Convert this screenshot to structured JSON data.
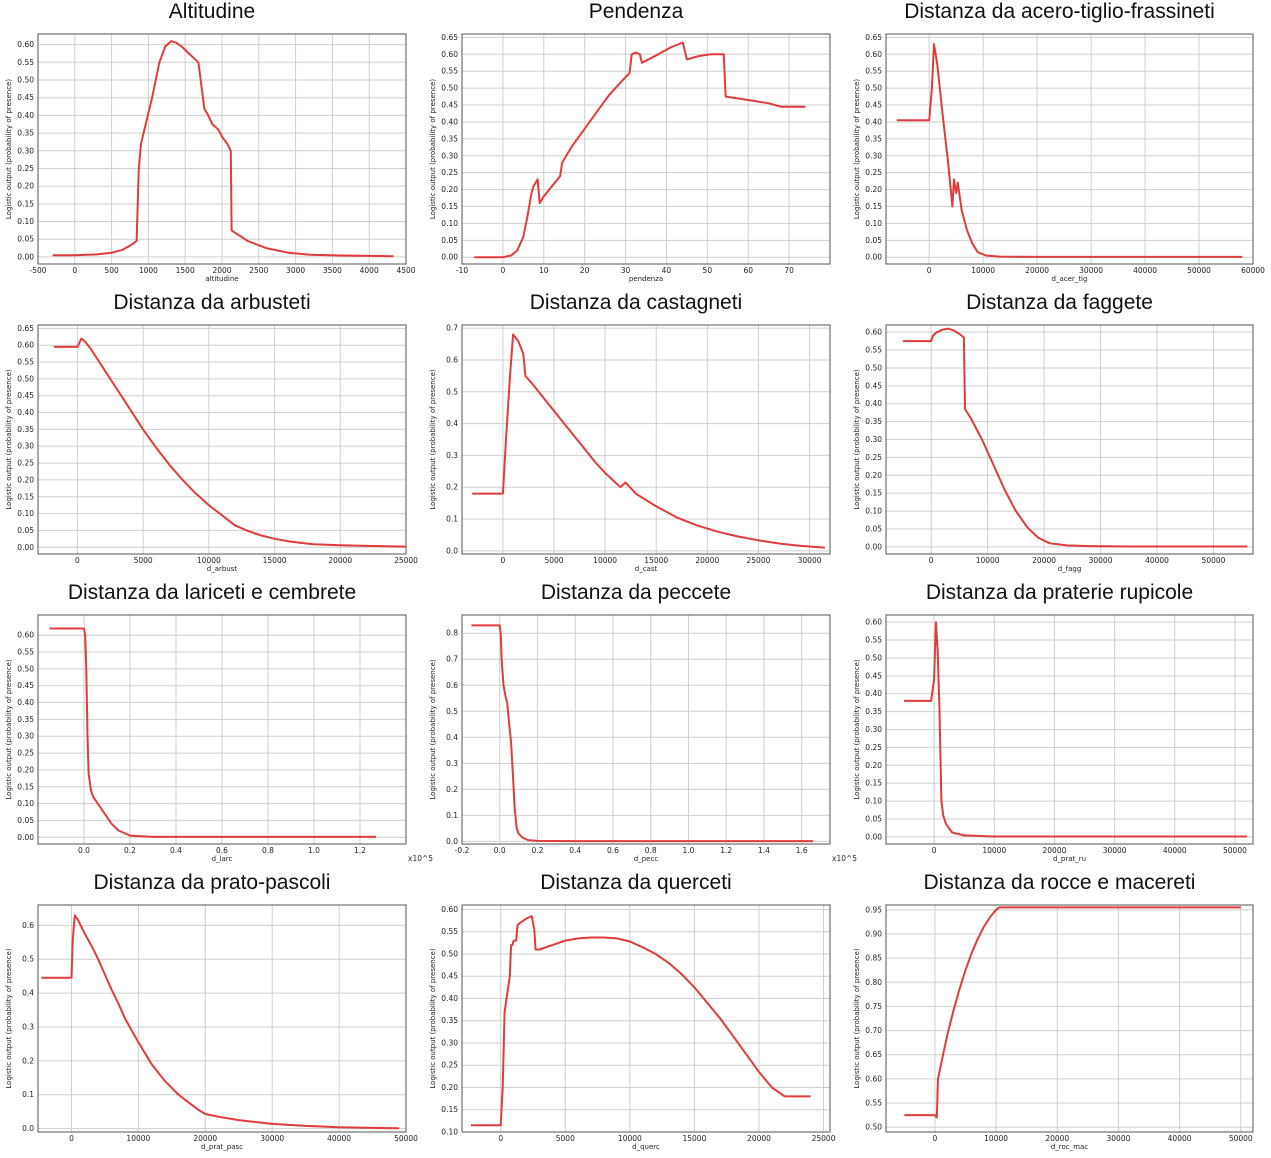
{
  "ylabel": "Logistic output (probability of presence)",
  "line_color": "#e03c3c",
  "chart_data": [
    {
      "type": "line",
      "title": "Altitudine",
      "xlabel": "altitudine",
      "xlim": [
        -500,
        4500
      ],
      "ylim": [
        -0.02,
        0.63
      ],
      "xticks": [
        -500,
        0,
        500,
        1000,
        1500,
        2000,
        2500,
        3000,
        3500,
        4000,
        4500
      ],
      "yticks": [
        0,
        0.05,
        0.1,
        0.15,
        0.2,
        0.25,
        0.3,
        0.35,
        0.4,
        0.45,
        0.5,
        0.55,
        0.6
      ],
      "ydec": 2,
      "x": [
        -300,
        0,
        300,
        500,
        650,
        760,
        840,
        870,
        900,
        1050,
        1150,
        1230,
        1310,
        1380,
        1450,
        1550,
        1680,
        1760,
        1770,
        1800,
        1870,
        1950,
        2000,
        2070,
        2120,
        2130,
        2200,
        2350,
        2600,
        2900,
        3200,
        3600,
        4000,
        4330
      ],
      "y": [
        0.005,
        0.005,
        0.007,
        0.012,
        0.02,
        0.033,
        0.045,
        0.25,
        0.32,
        0.45,
        0.55,
        0.595,
        0.61,
        0.605,
        0.595,
        0.575,
        0.55,
        0.42,
        0.415,
        0.405,
        0.375,
        0.36,
        0.34,
        0.32,
        0.3,
        0.075,
        0.065,
        0.045,
        0.025,
        0.012,
        0.006,
        0.004,
        0.003,
        0.002
      ]
    },
    {
      "type": "line",
      "title": "Pendenza",
      "xlabel": "pendenza",
      "xlim": [
        -10,
        80
      ],
      "ylim": [
        -0.02,
        0.66
      ],
      "xticks": [
        -10,
        0,
        10,
        20,
        30,
        40,
        50,
        60,
        70
      ],
      "yticks": [
        0,
        0.05,
        0.1,
        0.15,
        0.2,
        0.25,
        0.3,
        0.35,
        0.4,
        0.45,
        0.5,
        0.55,
        0.6,
        0.65
      ],
      "ydec": 2,
      "x": [
        -7,
        0,
        2,
        3.5,
        5,
        6,
        7,
        7.5,
        8,
        8.5,
        9,
        10,
        12,
        14,
        14.5,
        17,
        20,
        23,
        26,
        29,
        31,
        31.5,
        32.5,
        33.5,
        34,
        38,
        41,
        44,
        45,
        48,
        51,
        54,
        54.5,
        60,
        65,
        68,
        74
      ],
      "y": [
        0,
        0,
        0.005,
        0.02,
        0.06,
        0.12,
        0.19,
        0.21,
        0.22,
        0.23,
        0.16,
        0.18,
        0.21,
        0.24,
        0.28,
        0.33,
        0.38,
        0.43,
        0.48,
        0.52,
        0.545,
        0.6,
        0.605,
        0.6,
        0.575,
        0.6,
        0.62,
        0.635,
        0.585,
        0.595,
        0.6,
        0.6,
        0.475,
        0.465,
        0.455,
        0.445,
        0.445
      ]
    },
    {
      "type": "line",
      "title": "Distanza da acero-tiglio-frassineti",
      "xlabel": "d_acer_tig",
      "xlim": [
        -8000,
        60000
      ],
      "ylim": [
        -0.02,
        0.66
      ],
      "xticks": [
        0,
        10000,
        20000,
        30000,
        40000,
        50000,
        60000
      ],
      "yticks": [
        0,
        0.05,
        0.1,
        0.15,
        0.2,
        0.25,
        0.3,
        0.35,
        0.4,
        0.45,
        0.5,
        0.55,
        0.6,
        0.65
      ],
      "ydec": 2,
      "x": [
        -6000,
        0,
        500,
        900,
        1500,
        2500,
        3500,
        4300,
        4600,
        5000,
        5300,
        6000,
        7000,
        8000,
        9000,
        10500,
        13000,
        20000,
        40000,
        58000
      ],
      "y": [
        0.405,
        0.405,
        0.5,
        0.63,
        0.57,
        0.42,
        0.28,
        0.15,
        0.23,
        0.19,
        0.22,
        0.14,
        0.08,
        0.04,
        0.015,
        0.005,
        0.002,
        0.001,
        0.001,
        0.001
      ]
    },
    {
      "type": "line",
      "title": "Distanza da arbusteti",
      "xlabel": "d_arbust",
      "xlim": [
        -3000,
        25000
      ],
      "ylim": [
        -0.02,
        0.66
      ],
      "xticks": [
        0,
        5000,
        10000,
        15000,
        20000,
        25000
      ],
      "yticks": [
        0,
        0.05,
        0.1,
        0.15,
        0.2,
        0.25,
        0.3,
        0.35,
        0.4,
        0.45,
        0.5,
        0.55,
        0.6,
        0.65
      ],
      "ydec": 2,
      "x": [
        -1800,
        0,
        300,
        600,
        1000,
        2000,
        3000,
        4000,
        5000,
        6000,
        7000,
        8000,
        9000,
        10000,
        11000,
        12000,
        13000,
        14000,
        15000,
        16000,
        17000,
        18000,
        20000,
        22000,
        25000
      ],
      "y": [
        0.595,
        0.595,
        0.62,
        0.61,
        0.59,
        0.53,
        0.47,
        0.41,
        0.35,
        0.295,
        0.245,
        0.2,
        0.16,
        0.125,
        0.095,
        0.065,
        0.048,
        0.035,
        0.025,
        0.018,
        0.013,
        0.009,
        0.006,
        0.004,
        0.002
      ]
    },
    {
      "type": "line",
      "title": "Distanza da castagneti",
      "xlabel": "d_cast",
      "xlim": [
        -4000,
        32000
      ],
      "ylim": [
        -0.01,
        0.71
      ],
      "xticks": [
        0,
        5000,
        10000,
        15000,
        20000,
        25000,
        30000
      ],
      "yticks": [
        0,
        0.1,
        0.2,
        0.3,
        0.4,
        0.5,
        0.6,
        0.7
      ],
      "ydec": 1,
      "x": [
        -3000,
        0,
        300,
        700,
        1000,
        1500,
        2000,
        2200,
        3000,
        4000,
        5000,
        6000,
        7000,
        8000,
        9000,
        10000,
        11000,
        11500,
        12000,
        13000,
        15000,
        17000,
        19000,
        21000,
        23000,
        25000,
        27000,
        29000,
        31500
      ],
      "y": [
        0.18,
        0.18,
        0.35,
        0.55,
        0.68,
        0.66,
        0.62,
        0.55,
        0.52,
        0.48,
        0.44,
        0.4,
        0.36,
        0.32,
        0.28,
        0.245,
        0.215,
        0.2,
        0.215,
        0.18,
        0.14,
        0.105,
        0.08,
        0.06,
        0.045,
        0.033,
        0.023,
        0.016,
        0.01
      ]
    },
    {
      "type": "line",
      "title": "Distanza da faggete",
      "xlabel": "d_fagg",
      "xlim": [
        -8000,
        57000
      ],
      "ylim": [
        -0.02,
        0.62
      ],
      "xticks": [
        0,
        10000,
        20000,
        30000,
        40000,
        50000
      ],
      "yticks": [
        0,
        0.05,
        0.1,
        0.15,
        0.2,
        0.25,
        0.3,
        0.35,
        0.4,
        0.45,
        0.5,
        0.55,
        0.6
      ],
      "ydec": 2,
      "x": [
        -5000,
        0,
        300,
        1000,
        2000,
        3000,
        4000,
        5000,
        5800,
        6000,
        7000,
        9000,
        11000,
        13000,
        15000,
        17000,
        19000,
        21000,
        24000,
        28000,
        35000,
        45000,
        56000
      ],
      "y": [
        0.575,
        0.575,
        0.59,
        0.6,
        0.607,
        0.61,
        0.605,
        0.595,
        0.585,
        0.385,
        0.36,
        0.3,
        0.23,
        0.16,
        0.1,
        0.055,
        0.025,
        0.01,
        0.004,
        0.002,
        0.001,
        0.001,
        0.001
      ]
    },
    {
      "type": "line",
      "title": "Distanza da lariceti e cembrete",
      "xlabel": "d_larc",
      "xlim": [
        -0.2,
        1.4
      ],
      "ylim": [
        -0.02,
        0.66
      ],
      "xticks": [
        0,
        0.2,
        0.4,
        0.6,
        0.8,
        1,
        1.2
      ],
      "yticks": [
        0,
        0.05,
        0.1,
        0.15,
        0.2,
        0.25,
        0.3,
        0.35,
        0.4,
        0.45,
        0.5,
        0.55,
        0.6
      ],
      "ydec": 2,
      "xscale": "x10^5",
      "x": [
        -0.15,
        0,
        0.005,
        0.01,
        0.015,
        0.02,
        0.03,
        0.04,
        0.05,
        0.06,
        0.08,
        0.1,
        0.12,
        0.15,
        0.2,
        0.3,
        0.5,
        0.8,
        1.27
      ],
      "y": [
        0.62,
        0.62,
        0.6,
        0.5,
        0.3,
        0.19,
        0.14,
        0.12,
        0.11,
        0.1,
        0.08,
        0.06,
        0.04,
        0.02,
        0.005,
        0.001,
        0.001,
        0.001,
        0.001
      ]
    },
    {
      "type": "line",
      "title": "Distanza da peccete",
      "xlabel": "d_pecc",
      "xlim": [
        -0.2,
        1.75
      ],
      "ylim": [
        -0.01,
        0.87
      ],
      "xticks": [
        -0.2,
        0,
        0.2,
        0.4,
        0.6,
        0.8,
        1,
        1.2,
        1.4,
        1.6
      ],
      "yticks": [
        0,
        0.1,
        0.2,
        0.3,
        0.4,
        0.5,
        0.6,
        0.7,
        0.8
      ],
      "ydec": 1,
      "xscale": "x10^5",
      "x": [
        -0.15,
        0,
        0.005,
        0.01,
        0.02,
        0.03,
        0.04,
        0.05,
        0.06,
        0.07,
        0.08,
        0.09,
        0.1,
        0.12,
        0.15,
        0.2,
        0.4,
        0.8,
        1.66
      ],
      "y": [
        0.83,
        0.83,
        0.8,
        0.7,
        0.6,
        0.56,
        0.53,
        0.45,
        0.38,
        0.25,
        0.12,
        0.05,
        0.03,
        0.015,
        0.005,
        0.002,
        0.001,
        0.001,
        0.001
      ]
    },
    {
      "type": "line",
      "title": "Distanza da praterie rupicole",
      "xlabel": "d_prat_ru",
      "xlim": [
        -8000,
        53000
      ],
      "ylim": [
        -0.02,
        0.62
      ],
      "xticks": [
        0,
        10000,
        20000,
        30000,
        40000,
        50000
      ],
      "yticks": [
        0,
        0.05,
        0.1,
        0.15,
        0.2,
        0.25,
        0.3,
        0.35,
        0.4,
        0.45,
        0.5,
        0.55,
        0.6
      ],
      "ydec": 2,
      "x": [
        -5000,
        -500,
        0,
        300,
        600,
        900,
        1200,
        1500,
        2000,
        3000,
        5000,
        10000,
        20000,
        30000,
        40000,
        52000
      ],
      "y": [
        0.38,
        0.38,
        0.44,
        0.6,
        0.52,
        0.35,
        0.1,
        0.06,
        0.035,
        0.012,
        0.004,
        0.001,
        0.001,
        0.001,
        0.001,
        0.001
      ]
    },
    {
      "type": "line",
      "title": "Distanza da prato-pascoli",
      "xlabel": "d_prat_pasc",
      "xlim": [
        -5000,
        50000
      ],
      "ylim": [
        -0.01,
        0.66
      ],
      "xticks": [
        0,
        10000,
        20000,
        30000,
        40000,
        50000
      ],
      "yticks": [
        0,
        0.1,
        0.2,
        0.3,
        0.4,
        0.5,
        0.6
      ],
      "ydec": 1,
      "x": [
        -4500,
        0,
        200,
        500,
        1000,
        2000,
        3000,
        4000,
        5000,
        6000,
        7000,
        8000,
        10000,
        12000,
        14000,
        16000,
        18000,
        19000,
        20000,
        22000,
        25000,
        30000,
        35000,
        40000,
        45000,
        49000
      ],
      "y": [
        0.445,
        0.445,
        0.56,
        0.63,
        0.615,
        0.575,
        0.54,
        0.5,
        0.455,
        0.41,
        0.37,
        0.325,
        0.255,
        0.19,
        0.14,
        0.1,
        0.07,
        0.055,
        0.043,
        0.035,
        0.025,
        0.014,
        0.008,
        0.004,
        0.002,
        0.001
      ]
    },
    {
      "type": "line",
      "title": "Distanza da querceti",
      "xlabel": "d_querc",
      "xlim": [
        -3000,
        25500
      ],
      "ylim": [
        0.1,
        0.61
      ],
      "xticks": [
        0,
        5000,
        10000,
        15000,
        20000,
        25000
      ],
      "yticks": [
        0.1,
        0.15,
        0.2,
        0.25,
        0.3,
        0.35,
        0.4,
        0.45,
        0.5,
        0.55,
        0.6
      ],
      "ydec": 2,
      "x": [
        -2300,
        0,
        150,
        300,
        500,
        700,
        800,
        900,
        1000,
        1200,
        1300,
        1500,
        2000,
        2400,
        2600,
        2700,
        3000,
        4000,
        5000,
        6000,
        7000,
        8000,
        9000,
        10000,
        11000,
        12000,
        13000,
        14000,
        15000,
        16000,
        17000,
        18000,
        19000,
        20000,
        21000,
        22000,
        24000
      ],
      "y": [
        0.115,
        0.115,
        0.2,
        0.37,
        0.41,
        0.45,
        0.52,
        0.52,
        0.53,
        0.53,
        0.565,
        0.57,
        0.58,
        0.585,
        0.555,
        0.51,
        0.51,
        0.52,
        0.53,
        0.535,
        0.537,
        0.537,
        0.535,
        0.528,
        0.515,
        0.5,
        0.48,
        0.455,
        0.425,
        0.39,
        0.355,
        0.315,
        0.275,
        0.235,
        0.2,
        0.18,
        0.18
      ]
    },
    {
      "type": "line",
      "title": "Distanza da rocce e macereti",
      "xlabel": "d_roc_mac",
      "xlim": [
        -8000,
        52000
      ],
      "ylim": [
        0.49,
        0.96
      ],
      "xticks": [
        0,
        10000,
        20000,
        30000,
        40000,
        50000
      ],
      "yticks": [
        0.5,
        0.55,
        0.6,
        0.65,
        0.7,
        0.75,
        0.8,
        0.85,
        0.9,
        0.95
      ],
      "ydec": 2,
      "x": [
        -5000,
        0,
        300,
        500,
        1000,
        2000,
        3000,
        4000,
        5000,
        6000,
        7000,
        8000,
        9000,
        10000,
        10500,
        20000,
        30000,
        40000,
        50000
      ],
      "y": [
        0.525,
        0.525,
        0.52,
        0.6,
        0.63,
        0.69,
        0.74,
        0.785,
        0.825,
        0.86,
        0.89,
        0.915,
        0.935,
        0.95,
        0.955,
        0.955,
        0.955,
        0.955,
        0.955
      ]
    }
  ]
}
